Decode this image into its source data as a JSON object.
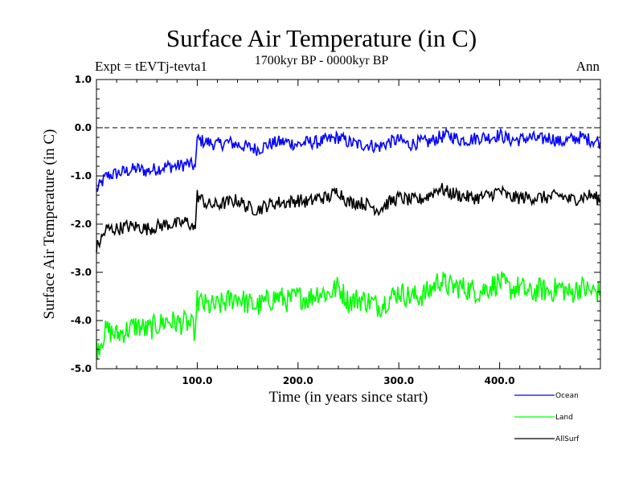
{
  "chart_data": {
    "type": "line",
    "title": "Surface Air Temperature (in C)",
    "subtitle": "1700kyr BP - 0000kyr BP",
    "experiment": "Expt = tEVTj-tevta1",
    "season": "Ann",
    "xlabel": "Time (in years since start)",
    "ylabel": "Surface Air Temperature (in C)",
    "xlim": [
      0,
      500
    ],
    "ylim": [
      -5.0,
      1.0
    ],
    "xticks": [
      100,
      200,
      300,
      400
    ],
    "xtick_labels": [
      "100.0",
      "200.0",
      "300.0",
      "400.0"
    ],
    "yticks": [
      1.0,
      0.0,
      -1.0,
      -2.0,
      -3.0,
      -4.0,
      -5.0
    ],
    "ytick_labels": [
      "1.0",
      "0.0",
      "-1.0",
      "-2.0",
      "-3.0",
      "-4.0",
      "-5.0"
    ],
    "reference_line": 0.0,
    "series": [
      {
        "name": "Ocean",
        "color": "#0000ff",
        "x": [
          0,
          10,
          20,
          30,
          40,
          50,
          60,
          70,
          80,
          90,
          98,
          100,
          110,
          120,
          130,
          140,
          150,
          160,
          170,
          180,
          190,
          200,
          210,
          220,
          230,
          240,
          250,
          260,
          270,
          280,
          290,
          300,
          310,
          320,
          330,
          340,
          350,
          360,
          370,
          380,
          390,
          400,
          410,
          420,
          430,
          440,
          450,
          460,
          470,
          480,
          490,
          500
        ],
        "values": [
          -1.3,
          -1.0,
          -0.95,
          -0.9,
          -0.85,
          -0.9,
          -0.85,
          -0.8,
          -0.8,
          -0.75,
          -0.8,
          -0.25,
          -0.3,
          -0.35,
          -0.3,
          -0.35,
          -0.4,
          -0.45,
          -0.35,
          -0.3,
          -0.3,
          -0.35,
          -0.3,
          -0.3,
          -0.25,
          -0.2,
          -0.3,
          -0.35,
          -0.35,
          -0.4,
          -0.3,
          -0.25,
          -0.35,
          -0.3,
          -0.3,
          -0.2,
          -0.15,
          -0.25,
          -0.25,
          -0.2,
          -0.2,
          -0.15,
          -0.25,
          -0.25,
          -0.2,
          -0.25,
          -0.2,
          -0.3,
          -0.25,
          -0.2,
          -0.25,
          -0.3
        ]
      },
      {
        "name": "Land",
        "color": "#00ff00",
        "x": [
          0,
          10,
          20,
          30,
          40,
          50,
          60,
          70,
          80,
          90,
          98,
          100,
          110,
          120,
          130,
          140,
          150,
          160,
          170,
          180,
          190,
          200,
          210,
          220,
          230,
          240,
          250,
          260,
          270,
          280,
          290,
          300,
          310,
          320,
          330,
          340,
          350,
          360,
          370,
          380,
          390,
          400,
          410,
          420,
          430,
          440,
          450,
          460,
          470,
          480,
          490,
          500
        ],
        "values": [
          -4.6,
          -4.2,
          -4.3,
          -4.2,
          -4.1,
          -4.2,
          -4.1,
          -4.0,
          -4.05,
          -4.05,
          -4.2,
          -3.6,
          -3.7,
          -3.7,
          -3.6,
          -3.5,
          -3.65,
          -3.7,
          -3.6,
          -3.5,
          -3.6,
          -3.5,
          -3.55,
          -3.4,
          -3.45,
          -3.3,
          -3.6,
          -3.55,
          -3.6,
          -3.7,
          -3.55,
          -3.4,
          -3.5,
          -3.5,
          -3.4,
          -3.15,
          -3.3,
          -3.3,
          -3.35,
          -3.4,
          -3.3,
          -3.2,
          -3.35,
          -3.3,
          -3.45,
          -3.35,
          -3.4,
          -3.3,
          -3.45,
          -3.3,
          -3.4,
          -3.4
        ]
      },
      {
        "name": "AllSurf",
        "color": "#000000",
        "x": [
          0,
          10,
          20,
          30,
          40,
          50,
          60,
          70,
          80,
          90,
          98,
          100,
          110,
          120,
          130,
          140,
          150,
          160,
          170,
          180,
          190,
          200,
          210,
          220,
          230,
          240,
          250,
          260,
          270,
          280,
          290,
          300,
          310,
          320,
          330,
          340,
          350,
          360,
          370,
          380,
          390,
          400,
          410,
          420,
          430,
          440,
          450,
          460,
          470,
          480,
          490,
          500
        ],
        "values": [
          -2.5,
          -2.1,
          -2.1,
          -2.05,
          -2.05,
          -2.1,
          -2.05,
          -2.0,
          -2.0,
          -1.95,
          -2.1,
          -1.4,
          -1.6,
          -1.6,
          -1.55,
          -1.5,
          -1.65,
          -1.7,
          -1.6,
          -1.55,
          -1.55,
          -1.5,
          -1.55,
          -1.45,
          -1.45,
          -1.3,
          -1.55,
          -1.55,
          -1.6,
          -1.7,
          -1.55,
          -1.45,
          -1.5,
          -1.5,
          -1.4,
          -1.25,
          -1.35,
          -1.4,
          -1.45,
          -1.45,
          -1.4,
          -1.3,
          -1.45,
          -1.45,
          -1.45,
          -1.45,
          -1.45,
          -1.4,
          -1.5,
          -1.45,
          -1.4,
          -1.5
        ]
      }
    ],
    "legend_position": "bottom-right"
  }
}
